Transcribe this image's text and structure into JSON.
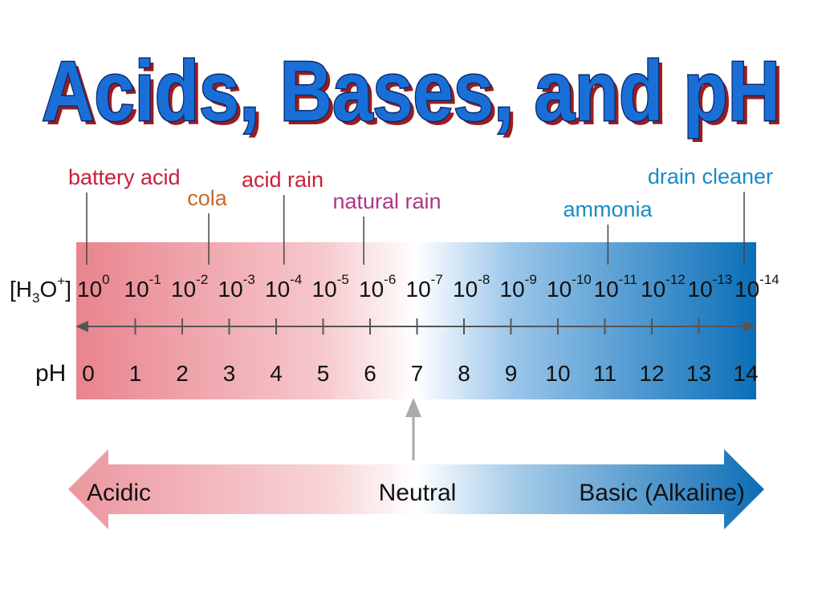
{
  "title": "Acids, Bases, and pH",
  "colors": {
    "title_fill": "#1a6fd6",
    "title_outline": "#0a2a70",
    "title_shadow": "#9b1c1c",
    "acid_red": "#e9848e",
    "basic_blue": "#0a6fb8",
    "battery_acid": "#c81e3a",
    "cola": "#c66a2a",
    "acid_rain": "#c81e3a",
    "natural_rain": "#b0348a",
    "ammonia": "#1a8ac6",
    "drain_cleaner": "#1a8ac6",
    "axis": "#555555",
    "neutral_arrow": "#aaaaaa"
  },
  "row_labels": {
    "h3o_base": "H",
    "h3o_sub": "3",
    "h3o_o": "O",
    "h3o_sup": "+",
    "ph": "pH"
  },
  "concentration_base": "10",
  "concentration_exponents": [
    "0",
    "-1",
    "-2",
    "-3",
    "-4",
    "-5",
    "-6",
    "-7",
    "-8",
    "-9",
    "-10",
    "-11",
    "-12",
    "-13",
    "-14"
  ],
  "ph_values": [
    "0",
    "1",
    "2",
    "3",
    "4",
    "5",
    "6",
    "7",
    "8",
    "9",
    "10",
    "11",
    "12",
    "13",
    "14"
  ],
  "substances": [
    {
      "name": "battery acid",
      "ph": 0,
      "color": "#c81e3a"
    },
    {
      "name": "cola",
      "ph": 2.6,
      "color": "#c66a2a"
    },
    {
      "name": "acid rain",
      "ph": 4.2,
      "color": "#c81e3a"
    },
    {
      "name": "natural rain",
      "ph": 5.9,
      "color": "#b0348a"
    },
    {
      "name": "ammonia",
      "ph": 11.1,
      "color": "#1a8ac6"
    },
    {
      "name": "drain cleaner",
      "ph": 14,
      "color": "#1a8ac6"
    }
  ],
  "scale": {
    "acidic": "Acidic",
    "neutral": "Neutral",
    "basic": "Basic (Alkaline)"
  }
}
